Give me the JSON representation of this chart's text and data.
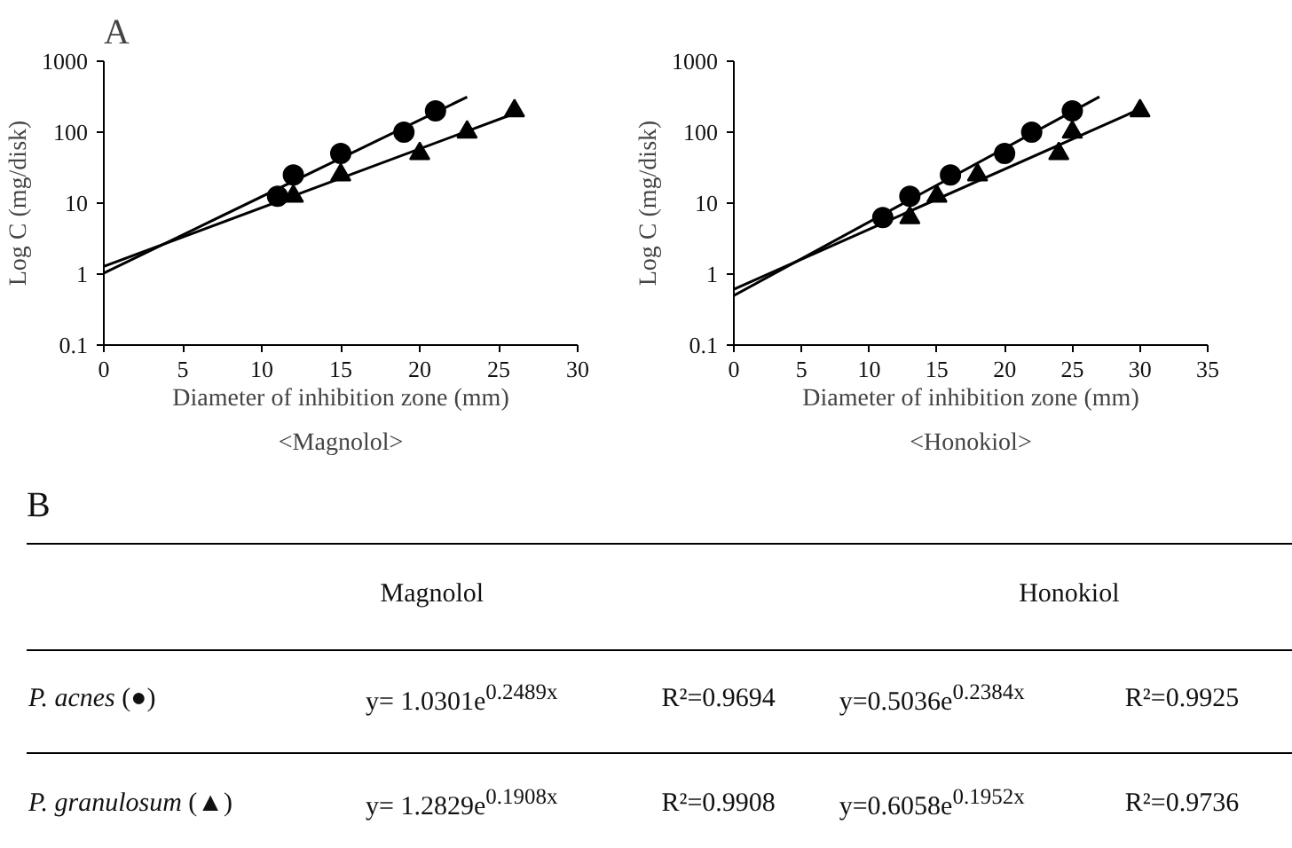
{
  "chart_data": [
    {
      "type": "scatter",
      "title": "A",
      "xlabel": "Diameter of inhibition zone (mm)",
      "ylabel": "Log C (mg/disk)",
      "annotations": [
        "<Magnolol>"
      ],
      "log": "y",
      "grid": false,
      "xlim": [
        0,
        30
      ],
      "xticks": [
        0,
        5,
        10,
        15,
        20,
        25,
        30
      ],
      "ylim": [
        0.1,
        1000
      ],
      "yticks": [
        0.1,
        1,
        10,
        100,
        1000
      ],
      "series": [
        {
          "type": "scatter",
          "marker": "circle",
          "color": "#000000",
          "x": [
            11,
            12,
            15,
            19,
            21
          ],
          "values": [
            12.5,
            25,
            50,
            100,
            200
          ]
        },
        {
          "type": "scatter",
          "marker": "triangle",
          "color": "#000000",
          "x": [
            12,
            15,
            20,
            23,
            26
          ],
          "values": [
            12.5,
            25,
            50,
            100,
            200
          ]
        },
        {
          "type": "line",
          "line_style": "solid",
          "color": "#000000",
          "x": [
            0,
            23
          ],
          "values": [
            1.03,
            313
          ]
        },
        {
          "type": "line",
          "line_style": "solid",
          "color": "#000000",
          "x": [
            0,
            26
          ],
          "values": [
            1.28,
            183
          ]
        }
      ]
    },
    {
      "type": "scatter",
      "xlabel": "Diameter of inhibition zone (mm)",
      "ylabel": "Log C (mg/disk)",
      "annotations": [
        "<Honokiol>"
      ],
      "log": "y",
      "grid": false,
      "xlim": [
        0,
        35
      ],
      "xticks": [
        0,
        5,
        10,
        15,
        20,
        25,
        30,
        35
      ],
      "ylim": [
        0.1,
        1000
      ],
      "yticks": [
        0.1,
        1,
        10,
        100,
        1000
      ],
      "series": [
        {
          "type": "scatter",
          "marker": "circle",
          "color": "#000000",
          "x": [
            11,
            13,
            16,
            20,
            22,
            25
          ],
          "values": [
            6.25,
            12.5,
            25,
            50,
            100,
            200
          ]
        },
        {
          "type": "scatter",
          "marker": "triangle",
          "color": "#000000",
          "x": [
            13,
            15,
            18,
            24,
            25,
            30
          ],
          "values": [
            6.25,
            12.5,
            25,
            50,
            100,
            200
          ]
        },
        {
          "type": "line",
          "line_style": "solid",
          "color": "#000000",
          "x": [
            0,
            27
          ],
          "values": [
            0.5,
            315
          ]
        },
        {
          "type": "line",
          "line_style": "solid",
          "color": "#000000",
          "x": [
            0,
            30
          ],
          "values": [
            0.61,
            212
          ]
        }
      ]
    },
    {
      "type": "other",
      "title": "B",
      "annotations": [
        "Magnolol",
        "Honokiol",
        "P. acnes (●)",
        "y= 1.0301e$^{0.2489x}$",
        "R²=0.9694",
        "y=0.5036e$^{0.2384x}$",
        "R²=0.9925",
        "P. granulosum (▲)",
        "y= 1.2829e$^{0.1908x}$",
        "R²=0.9908",
        "y=0.6058e$^{0.1952x}$",
        "R²=0.9736"
      ]
    }
  ]
}
